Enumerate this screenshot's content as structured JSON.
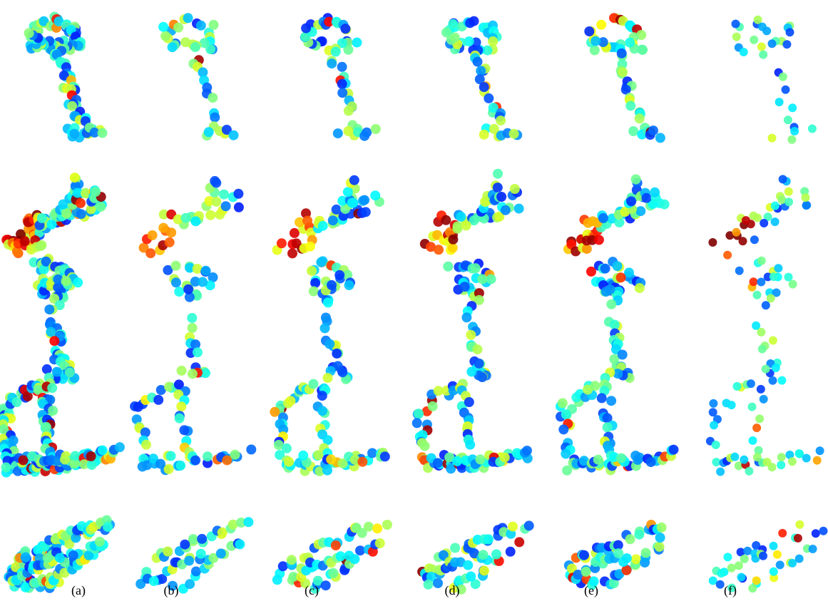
{
  "figure": {
    "panel_labels": [
      "(a)",
      "(b)",
      "(c)",
      "(d)",
      "(e)",
      "(f)"
    ]
  }
}
